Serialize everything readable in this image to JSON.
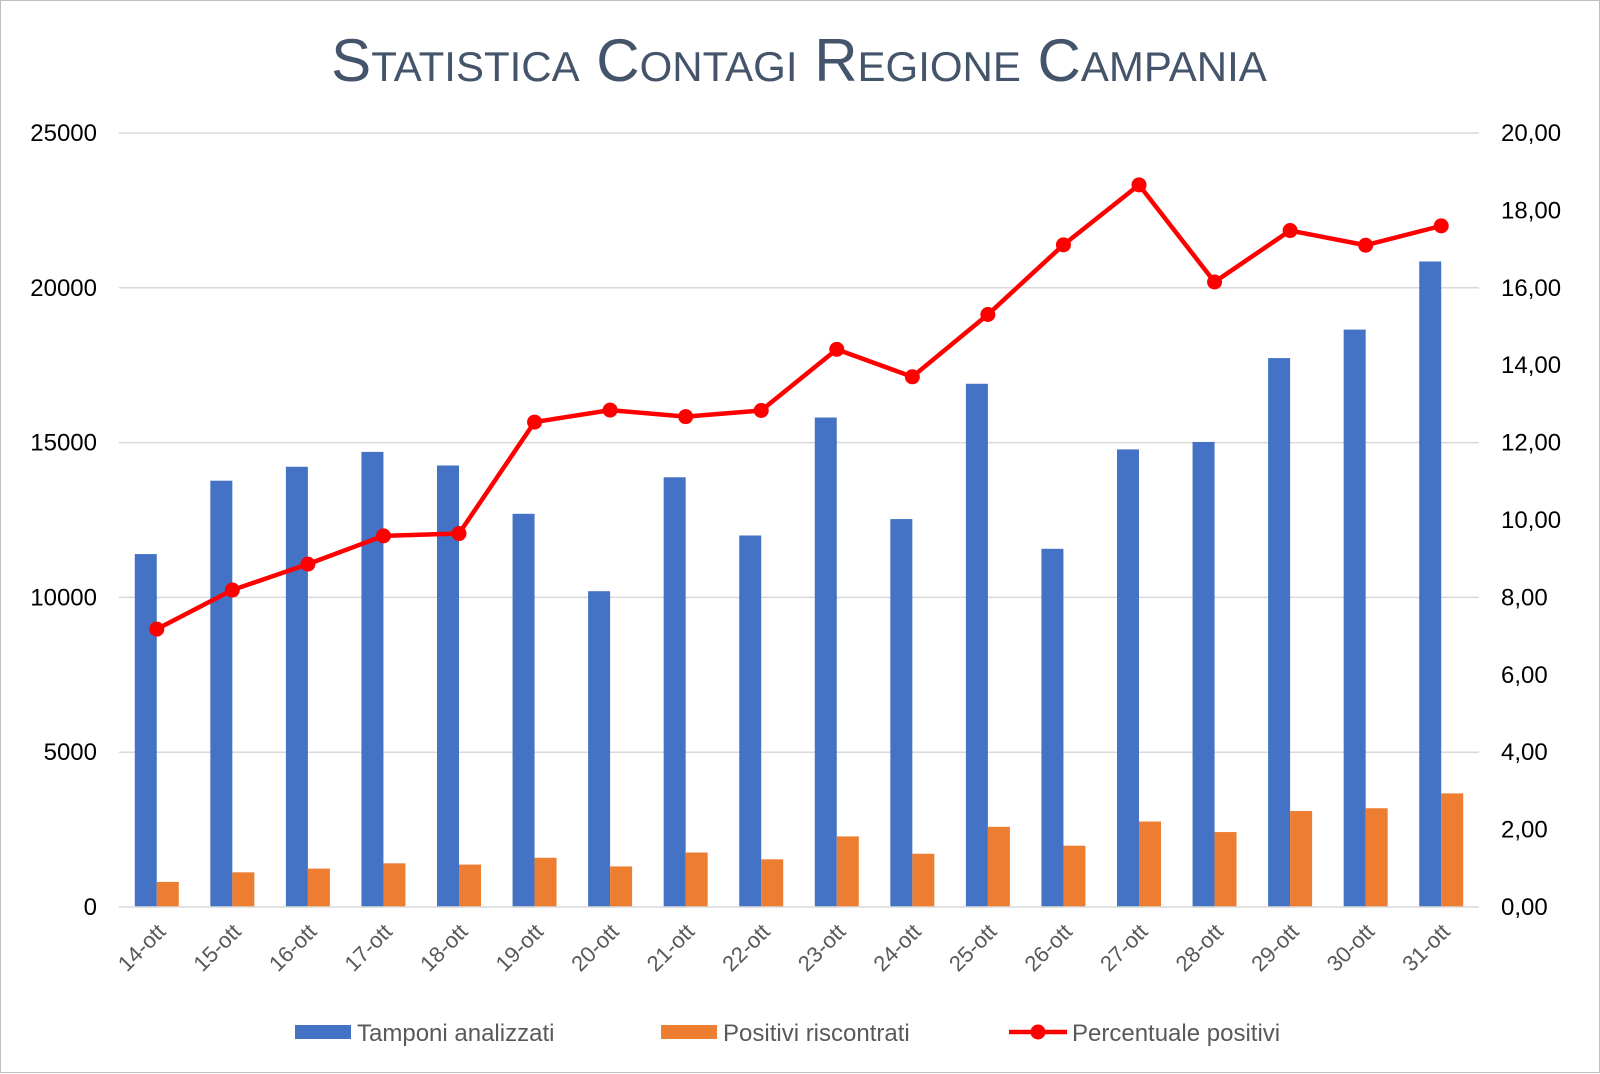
{
  "chart_data": {
    "type": "bar",
    "title": "Statistica Contagi Regione Campania",
    "categories": [
      "14-ott",
      "15-ott",
      "16-ott",
      "17-ott",
      "18-ott",
      "19-ott",
      "20-ott",
      "21-ott",
      "22-ott",
      "23-ott",
      "24-ott",
      "25-ott",
      "26-ott",
      "27-ott",
      "28-ott",
      "29-ott",
      "30-ott",
      "31-ott"
    ],
    "y_left": {
      "ylim": [
        0,
        25000
      ],
      "ticks": [
        "0",
        "5000",
        "10000",
        "15000",
        "20000",
        "25000"
      ]
    },
    "y_right": {
      "ylim": [
        0,
        20
      ],
      "ticks": [
        "0,00",
        "2,00",
        "4,00",
        "6,00",
        "8,00",
        "10,00",
        "12,00",
        "14,00",
        "16,00",
        "18,00",
        "20,00"
      ]
    },
    "grid": true,
    "legend_position": "bottom",
    "series": [
      {
        "name": "Tamponi analizzati",
        "type": "bar",
        "axis": "left",
        "color": "#4472c4",
        "values": [
          11400,
          13770,
          14220,
          14700,
          14260,
          12700,
          10200,
          13880,
          12000,
          15810,
          12530,
          16900,
          11570,
          14780,
          15020,
          17730,
          18650,
          20850
        ]
      },
      {
        "name": "Positivi riscontrati",
        "type": "bar",
        "axis": "left",
        "color": "#ed7d31",
        "values": [
          810,
          1120,
          1240,
          1410,
          1370,
          1590,
          1310,
          1760,
          1540,
          2280,
          1720,
          2590,
          1980,
          2760,
          2420,
          3100,
          3190,
          3670
        ]
      },
      {
        "name": "Percentuale positivi",
        "type": "line",
        "axis": "right",
        "color": "#ff0000",
        "values": [
          7.18,
          8.19,
          8.86,
          9.59,
          9.65,
          12.53,
          12.84,
          12.67,
          12.83,
          14.41,
          13.7,
          15.31,
          17.11,
          18.66,
          16.15,
          17.48,
          17.1,
          17.6
        ]
      }
    ]
  }
}
